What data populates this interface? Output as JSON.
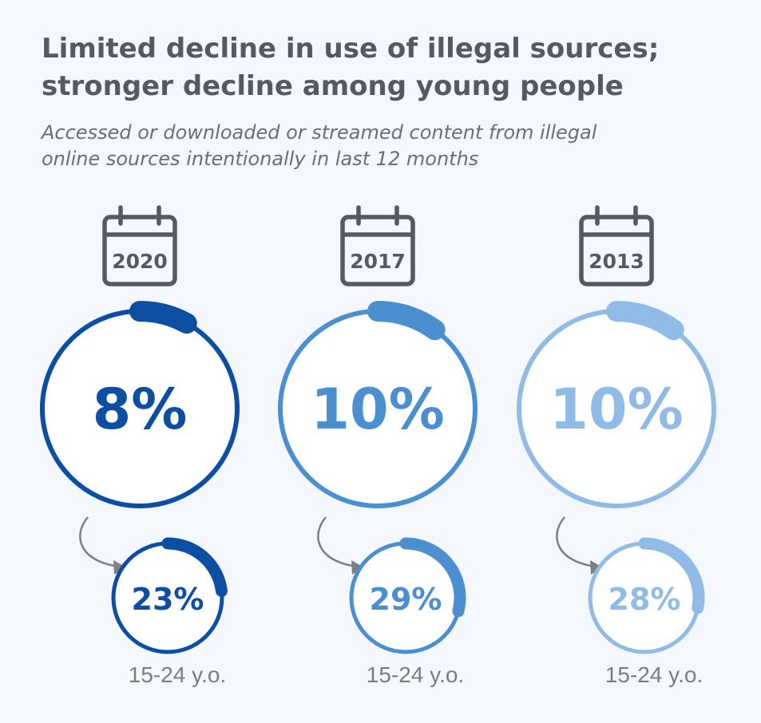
{
  "title_lines": [
    "Limited decline in use of illegal sources;",
    "stronger decline among young people"
  ],
  "subtitle_lines": [
    "Accessed or downloaded or streamed content from illegal",
    "online sources intentionally in last 12 months"
  ],
  "colors": {
    "y2020": "#0b4ea2",
    "y2017": "#4b8fd1",
    "y2013": "#8fbbe6",
    "text_gray": "#555a60",
    "label_gray": "#7a7d80"
  },
  "icons": {
    "calendar": "calendar-icon",
    "arrow": "curved-arrow-icon"
  },
  "chart_data": {
    "type": "donut",
    "categories": [
      "2020",
      "2017",
      "2013"
    ],
    "series": [
      {
        "values": [
          8,
          10,
          10
        ],
        "labels": [
          "8%",
          "10%",
          "10%"
        ]
      },
      {
        "name": "15-24 y.o.",
        "values": [
          23,
          29,
          28
        ],
        "labels": [
          "23%",
          "29%",
          "28%"
        ]
      }
    ]
  }
}
